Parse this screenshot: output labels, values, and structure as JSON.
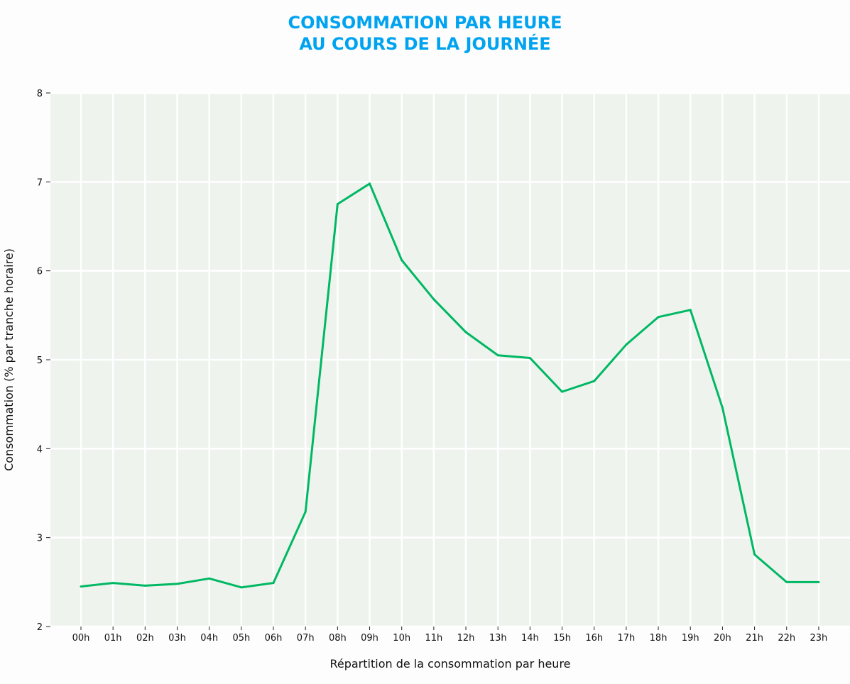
{
  "chart_data": {
    "type": "line",
    "title": [
      "CONSOMMATION PAR HEURE",
      "AU COURS DE LA JOURNÉE"
    ],
    "xlabel": "Répartition de la consommation par heure",
    "ylabel": "Consommation (% par tranche horaire)",
    "categories": [
      "00h",
      "01h",
      "02h",
      "03h",
      "04h",
      "05h",
      "06h",
      "07h",
      "08h",
      "09h",
      "10h",
      "11h",
      "12h",
      "13h",
      "14h",
      "15h",
      "16h",
      "17h",
      "18h",
      "19h",
      "20h",
      "21h",
      "22h",
      "23h"
    ],
    "values": [
      2.45,
      2.49,
      2.46,
      2.48,
      2.54,
      2.44,
      2.49,
      3.29,
      6.75,
      6.98,
      6.12,
      5.68,
      5.31,
      5.05,
      5.02,
      4.64,
      4.76,
      5.17,
      5.48,
      5.56,
      4.46,
      2.81,
      2.5,
      2.5
    ],
    "ylim": [
      2,
      8
    ],
    "yticks": [
      2,
      3,
      4,
      5,
      6,
      7,
      8
    ],
    "grid": true,
    "colors": {
      "line": "#00b863",
      "title": "#00a3f0",
      "plot_bg": "#eef3ee",
      "grid": "#ffffff"
    }
  }
}
